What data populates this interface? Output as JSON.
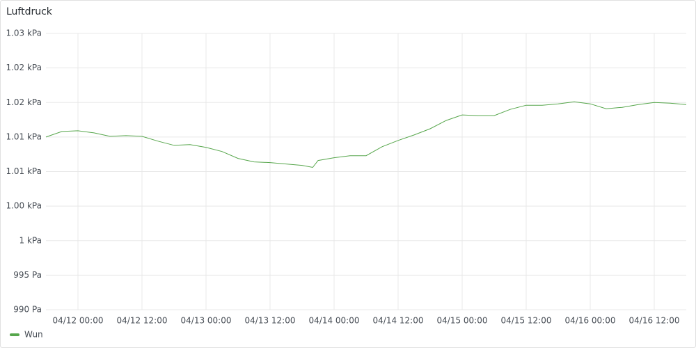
{
  "chart_data": {
    "type": "line",
    "title": "Luftdruck",
    "x": [
      "04/11 18:00",
      "04/11 21:00",
      "04/12 00:00",
      "04/12 03:00",
      "04/12 06:00",
      "04/12 09:00",
      "04/12 12:00",
      "04/12 15:00",
      "04/12 18:00",
      "04/12 21:00",
      "04/13 00:00",
      "04/13 03:00",
      "04/13 06:00",
      "04/13 09:00",
      "04/13 12:00",
      "04/13 15:00",
      "04/13 18:00",
      "04/13 20:00",
      "04/13 21:00",
      "04/14 00:00",
      "04/14 03:00",
      "04/14 06:00",
      "04/14 09:00",
      "04/14 12:00",
      "04/14 15:00",
      "04/14 18:00",
      "04/14 21:00",
      "04/15 00:00",
      "04/15 03:00",
      "04/15 06:00",
      "04/15 09:00",
      "04/15 12:00",
      "04/15 15:00",
      "04/15 18:00",
      "04/15 21:00",
      "04/16 00:00",
      "04/16 03:00",
      "04/16 06:00",
      "04/16 09:00",
      "04/16 12:00",
      "04/16 15:00",
      "04/16 18:00"
    ],
    "series": [
      {
        "name": "Wun",
        "color": "#56a64b",
        "values": [
          1015.0,
          1015.8,
          1015.9,
          1015.6,
          1015.1,
          1015.2,
          1015.1,
          1014.4,
          1013.8,
          1013.9,
          1013.5,
          1012.9,
          1011.9,
          1011.4,
          1011.3,
          1011.1,
          1010.9,
          1010.6,
          1011.6,
          1012.0,
          1012.3,
          1012.3,
          1013.6,
          1014.5,
          1015.3,
          1016.2,
          1017.4,
          1018.2,
          1018.1,
          1018.1,
          1019.0,
          1019.6,
          1019.6,
          1019.8,
          1020.1,
          1019.8,
          1019.1,
          1019.3,
          1019.7,
          1020.0,
          1019.9,
          1019.7
        ]
      }
    ],
    "xlim": [
      "04/11 18:00",
      "04/16 18:00"
    ],
    "xticks": [
      "04/12 00:00",
      "04/12 12:00",
      "04/13 00:00",
      "04/13 12:00",
      "04/14 00:00",
      "04/14 12:00",
      "04/15 00:00",
      "04/15 12:00",
      "04/16 00:00",
      "04/16 12:00"
    ],
    "ylim": [
      990,
      1030
    ],
    "yticks": [
      {
        "value": 990,
        "label": "990 Pa"
      },
      {
        "value": 995,
        "label": "995 Pa"
      },
      {
        "value": 1000,
        "label": "1 kPa"
      },
      {
        "value": 1005,
        "label": "1.00 kPa"
      },
      {
        "value": 1010,
        "label": "1.01 kPa"
      },
      {
        "value": 1015,
        "label": "1.01 kPa"
      },
      {
        "value": 1020,
        "label": "1.02 kPa"
      },
      {
        "value": 1025,
        "label": "1.02 kPa"
      },
      {
        "value": 1030,
        "label": "1.03 kPa"
      }
    ],
    "grid": true,
    "legend": "bottom-left"
  }
}
